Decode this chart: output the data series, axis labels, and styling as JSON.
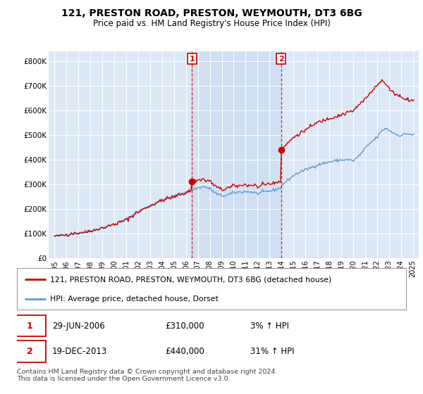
{
  "title": "121, PRESTON ROAD, PRESTON, WEYMOUTH, DT3 6BG",
  "subtitle": "Price paid vs. HM Land Registry's House Price Index (HPI)",
  "legend_line1": "121, PRESTON ROAD, PRESTON, WEYMOUTH, DT3 6BG (detached house)",
  "legend_line2": "HPI: Average price, detached house, Dorset",
  "footnote": "Contains HM Land Registry data © Crown copyright and database right 2024.\nThis data is licensed under the Open Government Licence v3.0.",
  "sale1_date": "29-JUN-2006",
  "sale1_price": "£310,000",
  "sale1_hpi": "3% ↑ HPI",
  "sale2_date": "19-DEC-2013",
  "sale2_price": "£440,000",
  "sale2_hpi": "31% ↑ HPI",
  "vline1_x": 2006.5,
  "vline2_x": 2013.97,
  "marker1_x": 2006.5,
  "marker1_y": 310000,
  "marker2_x": 2013.97,
  "marker2_y": 440000,
  "ylim": [
    0,
    840000
  ],
  "xlim_start": 1994.5,
  "xlim_end": 2025.5,
  "plot_bg_color": "#dce8f5",
  "shade_color": "#c8dcf0",
  "grid_color": "#ffffff",
  "red_line_color": "#cc0000",
  "blue_line_color": "#6699cc",
  "vline_color": "#cc0000",
  "ytick_labels": [
    "£0",
    "£100K",
    "£200K",
    "£300K",
    "£400K",
    "£500K",
    "£600K",
    "£700K",
    "£800K"
  ],
  "ytick_values": [
    0,
    100000,
    200000,
    300000,
    400000,
    500000,
    600000,
    700000,
    800000
  ],
  "xtick_years": [
    1995,
    1996,
    1997,
    1998,
    1999,
    2000,
    2001,
    2002,
    2003,
    2004,
    2005,
    2006,
    2007,
    2008,
    2009,
    2010,
    2011,
    2012,
    2013,
    2014,
    2015,
    2016,
    2017,
    2018,
    2019,
    2020,
    2021,
    2022,
    2023,
    2024,
    2025
  ]
}
